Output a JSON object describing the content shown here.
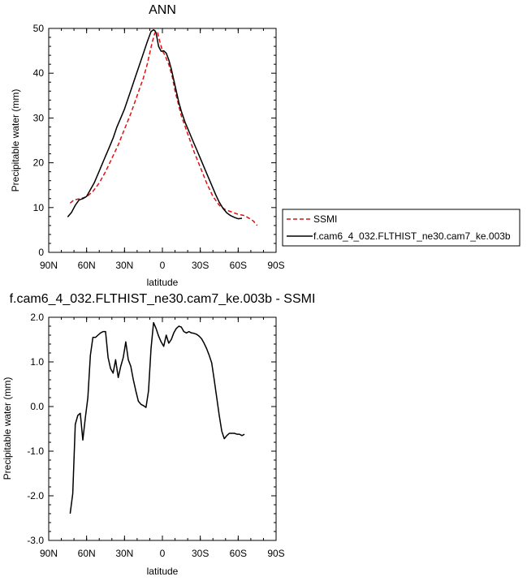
{
  "chart_data": [
    {
      "type": "line",
      "title": "ANN",
      "xlabel": "latitude",
      "ylabel": "Precipitable water (mm)",
      "xlim": [
        90,
        -90
      ],
      "ylim": [
        0,
        50
      ],
      "x_ticks": [
        {
          "value": 90,
          "label": "90N"
        },
        {
          "value": 60,
          "label": "60N"
        },
        {
          "value": 30,
          "label": "30N"
        },
        {
          "value": 0,
          "label": "0"
        },
        {
          "value": -30,
          "label": "30S"
        },
        {
          "value": -60,
          "label": "60S"
        },
        {
          "value": -90,
          "label": "90S"
        }
      ],
      "y_ticks": [
        {
          "value": 0,
          "label": "0"
        },
        {
          "value": 10,
          "label": "10"
        },
        {
          "value": 20,
          "label": "20"
        },
        {
          "value": 30,
          "label": "30"
        },
        {
          "value": 40,
          "label": "40"
        },
        {
          "value": 50,
          "label": "50"
        }
      ],
      "legend_position": "right",
      "series": [
        {
          "name": "SSMI",
          "color": "#dd1111",
          "dash": "dashed",
          "x": [
            73,
            70,
            65,
            60,
            55,
            50,
            45,
            40,
            35,
            30,
            25,
            20,
            15,
            12,
            10,
            8,
            6,
            4,
            2,
            0,
            -2,
            -5,
            -8,
            -10,
            -15,
            -20,
            -25,
            -30,
            -35,
            -40,
            -45,
            -50,
            -55,
            -60,
            -65,
            -70,
            -72,
            -75
          ],
          "y": [
            11,
            11.7,
            12,
            12.4,
            13.6,
            15.5,
            18,
            21,
            24,
            27.5,
            31,
            35,
            39,
            42,
            44.5,
            47,
            49,
            49.3,
            47,
            45,
            44,
            42,
            39,
            36,
            30.5,
            26.5,
            22.5,
            19,
            15.5,
            12.5,
            10.5,
            9.5,
            9,
            8.5,
            8.2,
            7.4,
            7,
            6
          ]
        },
        {
          "name": "f.cam6_4_032.FLTHIST_ne30.cam7_ke.003b",
          "color": "#000000",
          "dash": "solid",
          "x": [
            75,
            72,
            69,
            66,
            63,
            60,
            57,
            54,
            51,
            48,
            45,
            42,
            39,
            36,
            33,
            30,
            27,
            24,
            21,
            18,
            15,
            12,
            9,
            7,
            6,
            5,
            3,
            1,
            -1,
            -3,
            -5,
            -7,
            -9,
            -11,
            -13,
            -15,
            -18,
            -21,
            -24,
            -27,
            -30,
            -33,
            -36,
            -39,
            -42,
            -45,
            -48,
            -51,
            -54,
            -57,
            -60,
            -63
          ],
          "y": [
            7.9,
            8.9,
            10.5,
            11.7,
            12,
            12.5,
            14,
            15.5,
            17.5,
            19.5,
            21.5,
            23.5,
            25.5,
            28,
            30,
            32,
            34.5,
            37,
            39.5,
            42,
            44.5,
            47,
            49.3,
            49.7,
            49.5,
            49,
            46,
            44.9,
            45,
            44.5,
            43,
            41,
            38.5,
            36,
            33.5,
            31.5,
            29,
            27,
            25,
            23,
            21,
            19,
            17,
            15,
            13,
            11.2,
            9.8,
            8.8,
            8.2,
            7.8,
            7.5,
            7.6
          ]
        }
      ]
    },
    {
      "type": "line",
      "title": "f.cam6_4_032.FLTHIST_ne30.cam7_ke.003b - SSMI",
      "xlabel": "latitude",
      "ylabel": "Precipitable water (mm)",
      "xlim": [
        90,
        -90
      ],
      "ylim": [
        -3,
        2
      ],
      "x_ticks": [
        {
          "value": 90,
          "label": "90N"
        },
        {
          "value": 60,
          "label": "60N"
        },
        {
          "value": 30,
          "label": "30N"
        },
        {
          "value": 0,
          "label": "0"
        },
        {
          "value": -30,
          "label": "30S"
        },
        {
          "value": -60,
          "label": "60S"
        },
        {
          "value": -90,
          "label": "90S"
        }
      ],
      "y_ticks": [
        {
          "value": -3,
          "label": "-3.0"
        },
        {
          "value": -2,
          "label": "-2.0"
        },
        {
          "value": -1,
          "label": "-1.0"
        },
        {
          "value": 0,
          "label": "0.0"
        },
        {
          "value": 1,
          "label": "1.0"
        },
        {
          "value": 2,
          "label": "2.0"
        }
      ],
      "series": [
        {
          "color": "#000000",
          "dash": "solid",
          "x": [
            73,
            71,
            69,
            67,
            65,
            63,
            61,
            59,
            57,
            55,
            53,
            51,
            49,
            47,
            45,
            43,
            41,
            39,
            37,
            35,
            33,
            31,
            29,
            27,
            25,
            23,
            21,
            19,
            17,
            15,
            13,
            11,
            9,
            7,
            5,
            3,
            1,
            -1,
            -3,
            -5,
            -7,
            -9,
            -11,
            -13,
            -15,
            -17,
            -19,
            -21,
            -23,
            -25,
            -27,
            -29,
            -31,
            -33,
            -35,
            -37,
            -39,
            -41,
            -43,
            -45,
            -47,
            -49,
            -51,
            -53,
            -55,
            -57,
            -59,
            -61,
            -63,
            -65
          ],
          "y": [
            -2.4,
            -1.95,
            -0.4,
            -0.2,
            -0.15,
            -0.75,
            -0.25,
            0.2,
            1.15,
            1.55,
            1.55,
            1.6,
            1.65,
            1.68,
            1.68,
            1.1,
            0.85,
            0.75,
            1.05,
            0.65,
            0.9,
            1.1,
            1.45,
            1.05,
            0.9,
            0.6,
            0.35,
            0.12,
            0.05,
            0.02,
            -0.02,
            0.35,
            1.3,
            1.88,
            1.75,
            1.58,
            1.45,
            1.35,
            1.6,
            1.42,
            1.5,
            1.65,
            1.75,
            1.8,
            1.78,
            1.68,
            1.65,
            1.68,
            1.65,
            1.64,
            1.62,
            1.58,
            1.52,
            1.42,
            1.3,
            1.15,
            0.98,
            0.6,
            0.2,
            -0.2,
            -0.55,
            -0.72,
            -0.65,
            -0.6,
            -0.6,
            -0.6,
            -0.62,
            -0.62,
            -0.65,
            -0.62
          ]
        }
      ]
    }
  ]
}
